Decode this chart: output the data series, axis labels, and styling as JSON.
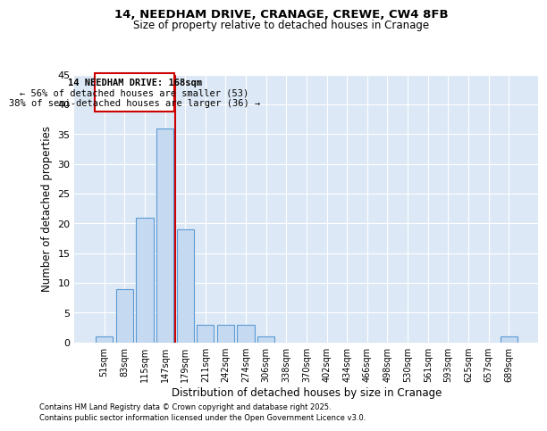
{
  "title1": "14, NEEDHAM DRIVE, CRANAGE, CREWE, CW4 8FB",
  "title2": "Size of property relative to detached houses in Cranage",
  "xlabel": "Distribution of detached houses by size in Cranage",
  "ylabel": "Number of detached properties",
  "categories": [
    "51sqm",
    "83sqm",
    "115sqm",
    "147sqm",
    "179sqm",
    "211sqm",
    "242sqm",
    "274sqm",
    "306sqm",
    "338sqm",
    "370sqm",
    "402sqm",
    "434sqm",
    "466sqm",
    "498sqm",
    "530sqm",
    "561sqm",
    "593sqm",
    "625sqm",
    "657sqm",
    "689sqm"
  ],
  "values": [
    1,
    9,
    21,
    36,
    19,
    3,
    3,
    3,
    1,
    0,
    0,
    0,
    0,
    0,
    0,
    0,
    0,
    0,
    0,
    0,
    1
  ],
  "bar_color": "#c5d9f0",
  "bar_edge_color": "#5b9bd5",
  "ylim": [
    0,
    45
  ],
  "yticks": [
    0,
    5,
    10,
    15,
    20,
    25,
    30,
    35,
    40,
    45
  ],
  "red_line_x": 3.5,
  "annotation_title": "14 NEEDHAM DRIVE: 168sqm",
  "annotation_line1": "← 56% of detached houses are smaller (53)",
  "annotation_line2": "38% of semi-detached houses are larger (36) →",
  "annotation_box_color": "#ffffff",
  "annotation_box_edge": "#cc0000",
  "red_line_color": "#cc0000",
  "background_color": "#dce8f5",
  "grid_color": "#ffffff",
  "footer1": "Contains HM Land Registry data © Crown copyright and database right 2025.",
  "footer2": "Contains public sector information licensed under the Open Government Licence v3.0."
}
